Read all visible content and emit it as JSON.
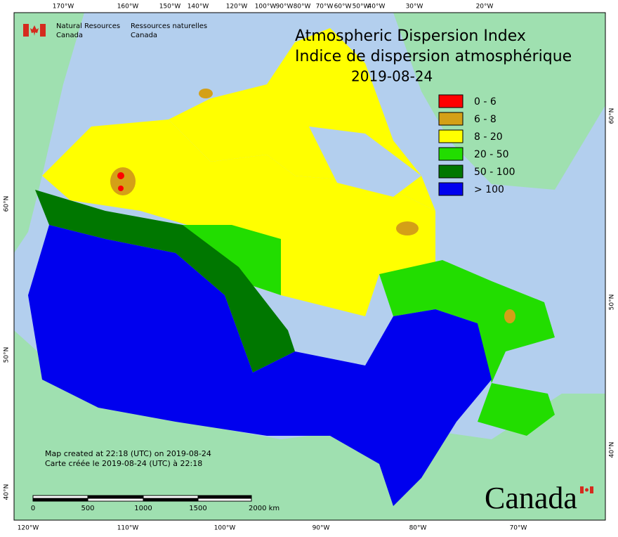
{
  "header": {
    "department_en": [
      "Natural Resources",
      "Canada"
    ],
    "department_fr": [
      "Ressources naturelles",
      "Canada"
    ]
  },
  "title": "Atmospheric Dispersion Index",
  "subtitle": "Indice de dispersion atmosphérique",
  "date": "2019-08-24",
  "legend": [
    {
      "label": "0 - 6",
      "color": "#ff0000"
    },
    {
      "label": "6 - 8",
      "color": "#d4a017"
    },
    {
      "label": "8 - 20",
      "color": "#ffff00"
    },
    {
      "label": "20 - 50",
      "color": "#22dd00"
    },
    {
      "label": "50 - 100",
      "color": "#007700"
    },
    {
      "label": "> 100",
      "color": "#0000ee"
    }
  ],
  "graticule": {
    "top": [
      "170°W",
      "160°W",
      "150°W",
      "140°W",
      "120°W",
      "100°W",
      "90°W",
      "80°W",
      "70°W",
      "60°W",
      "50°W",
      "40°W",
      "30°W",
      "20°W"
    ],
    "bottom": [
      "120°W",
      "110°W",
      "100°W",
      "90°W",
      "80°W",
      "70°W"
    ],
    "left": [
      "60°N",
      "50°N",
      "40°N"
    ],
    "right": [
      "60°N",
      "50°N",
      "40°N"
    ]
  },
  "notes": [
    "Map created at 22:18 (UTC) on 2019-08-24",
    "Carte créée le 2019-08-24 (UTC) à 22:18"
  ],
  "scale_bar": [
    "0",
    "500",
    "1000",
    "1500",
    "2000 km"
  ],
  "wordmark": "Canada"
}
